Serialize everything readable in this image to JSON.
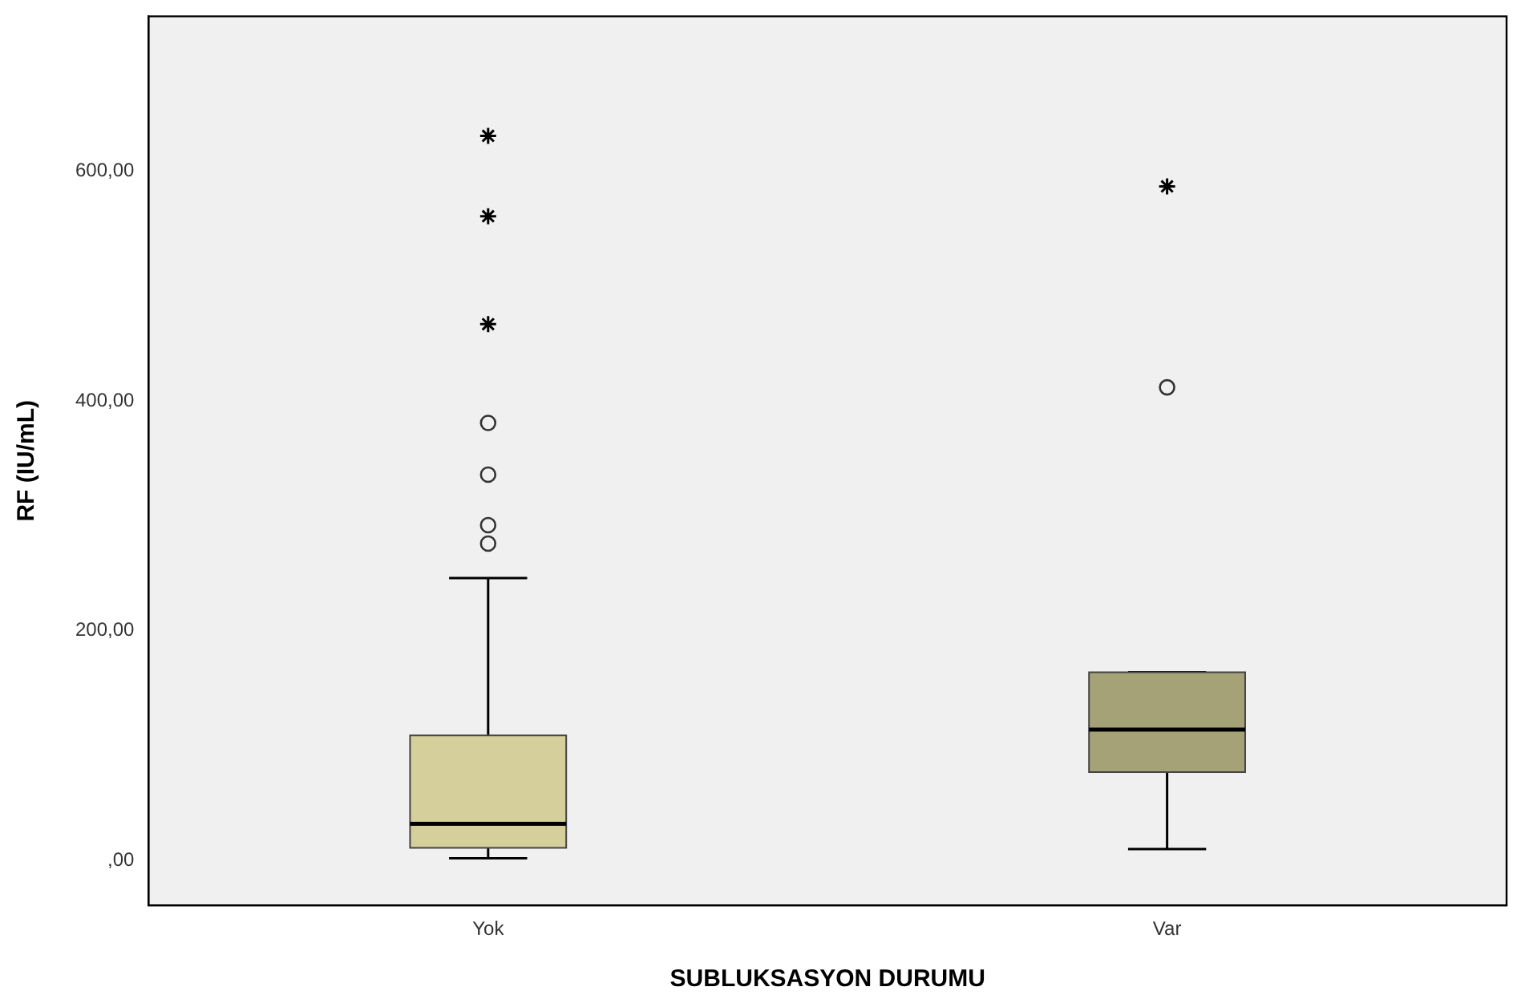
{
  "chart_data": {
    "type": "box",
    "xlabel": "SUBLUKSASYON DURUMU",
    "ylabel": "RF (IU/mL)",
    "categories": [
      "Yok",
      "Var"
    ],
    "boxes": [
      {
        "low": 2,
        "q1": 11,
        "median": 32,
        "q3": 109,
        "high": 246,
        "outliers": [
          381,
          336,
          292,
          276
        ]
      },
      {
        "low": 10,
        "q1": 77,
        "median": 114,
        "q3": 164,
        "high": 164,
        "outliers": [
          412
        ]
      }
    ],
    "colors": [
      "#d4cf9b",
      "#a6a278"
    ],
    "series": [
      {
        "type": "scatter",
        "x": [
          "Yok",
          "Yok",
          "Yok",
          "Var"
        ],
        "values": [
          631,
          561,
          467,
          587
        ],
        "marker": "cross",
        "color": "#000000"
      }
    ],
    "ylim": [
      -39,
      735
    ],
    "yticks": [
      {
        "value": 0,
        "label": ",00"
      },
      {
        "value": 200,
        "label": "200,00"
      },
      {
        "value": 400,
        "label": "400,00"
      },
      {
        "value": 600,
        "label": "600,00"
      }
    ],
    "grid": false,
    "legend": false
  }
}
